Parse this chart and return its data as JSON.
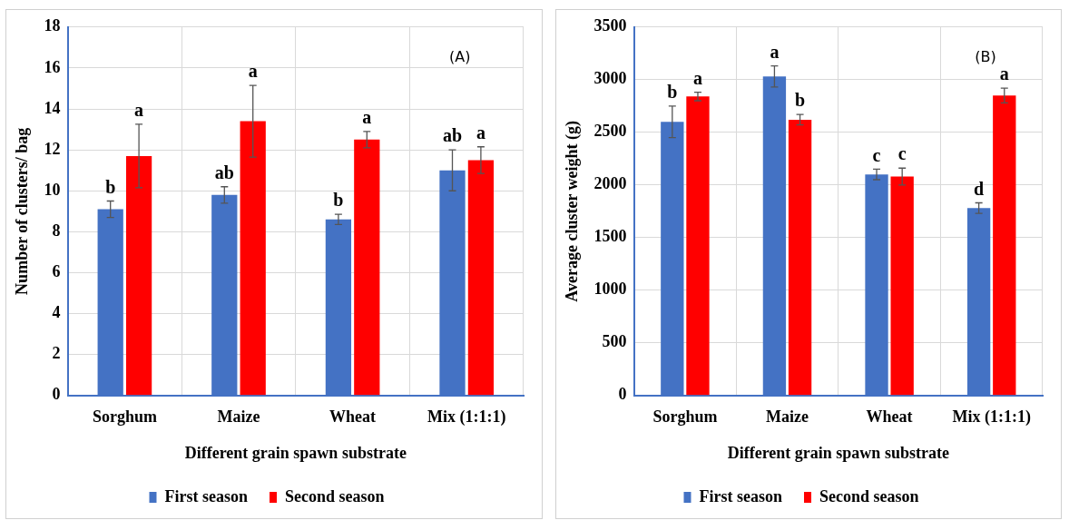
{
  "chart_data": [
    {
      "type": "bar",
      "xlabel": "Different grain spawn substrate",
      "ylabel": "Number of clusters/ bag",
      "categories": [
        "Sorghum",
        "Maize",
        "Wheat",
        "Mix (1:1:1)"
      ],
      "series": [
        {
          "name": "First season",
          "color": "#4472c4",
          "values": [
            9.1,
            9.8,
            8.6,
            11.0
          ],
          "errors": [
            0.4,
            0.4,
            0.25,
            1.0
          ],
          "value_labels": [
            "b",
            "ab",
            "b",
            "ab"
          ]
        },
        {
          "name": "Second season",
          "color": "#ff0000",
          "values": [
            11.7,
            13.4,
            12.5,
            11.5
          ],
          "errors": [
            1.55,
            1.75,
            0.4,
            0.65
          ],
          "value_labels": [
            "a",
            "a",
            "a",
            "a"
          ]
        }
      ],
      "ylim": [
        0,
        18
      ],
      "yticks": [
        0,
        2,
        4,
        6,
        8,
        10,
        12,
        14,
        16,
        18
      ],
      "grid": true,
      "legend": "bottom",
      "annotations": [
        "(A)"
      ]
    },
    {
      "type": "bar",
      "xlabel": "Different grain spawn substrate",
      "ylabel": "Average cluster weight (g)",
      "categories": [
        "Sorghum",
        "Maize",
        "Wheat",
        "Mix (1:1:1)"
      ],
      "series": [
        {
          "name": "First season",
          "color": "#4472c4",
          "values": [
            2600,
            3030,
            2100,
            1780
          ],
          "errors": [
            150,
            100,
            50,
            50
          ],
          "value_labels": [
            "b",
            "a",
            "c",
            "d"
          ]
        },
        {
          "name": "Second season",
          "color": "#ff0000",
          "values": [
            2840,
            2620,
            2080,
            2850
          ],
          "errors": [
            40,
            50,
            80,
            70
          ],
          "value_labels": [
            "a",
            "b",
            "c",
            "a"
          ]
        }
      ],
      "ylim": [
        0,
        3500
      ],
      "yticks": [
        0,
        500,
        1000,
        1500,
        2000,
        2500,
        3000,
        3500
      ],
      "grid": true,
      "legend": "bottom",
      "annotations": [
        "(B)"
      ]
    }
  ]
}
